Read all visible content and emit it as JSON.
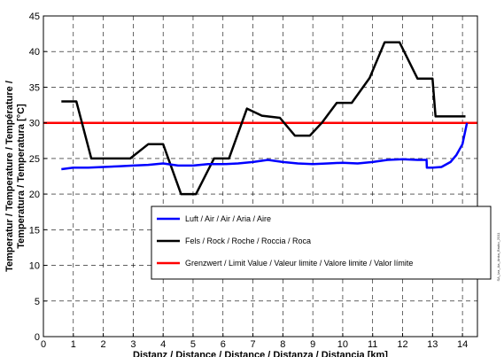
{
  "chart_data": {
    "type": "line",
    "title": "",
    "xlabel": "Distanz / Distance / Distance / Distanza / Distancia [km]",
    "ylabel_lines": [
      "Temperatur / Temperature / Température /",
      "Temperatura / Temperatura [°C]"
    ],
    "xlim": [
      0,
      14.5
    ],
    "ylim": [
      0,
      45
    ],
    "xticks": [
      0,
      1,
      2,
      3,
      4,
      5,
      6,
      7,
      8,
      9,
      10,
      11,
      12,
      13,
      14
    ],
    "yticks": [
      0,
      5,
      10,
      15,
      20,
      25,
      30,
      35,
      40,
      45
    ],
    "grid": "dashed",
    "legend_position": "lower-right",
    "side_note": "SA_Iza_Aa_Anka_Brutto_2011",
    "series": [
      {
        "name": "Luft / Air / Air / Aria / Aire",
        "color": "#0000ff",
        "x": [
          0.6,
          1.0,
          1.5,
          2.0,
          2.5,
          3.0,
          3.5,
          4.0,
          4.5,
          5.0,
          5.5,
          6.0,
          6.5,
          7.0,
          7.5,
          8.0,
          8.5,
          9.0,
          9.5,
          10.0,
          10.5,
          11.0,
          11.5,
          12.0,
          12.5,
          12.8,
          12.81,
          13.0,
          13.3,
          13.6,
          13.8,
          14.0,
          14.15
        ],
        "y": [
          23.5,
          23.7,
          23.7,
          23.8,
          23.9,
          24.0,
          24.1,
          24.3,
          24.0,
          24.0,
          24.2,
          24.2,
          24.3,
          24.5,
          24.8,
          24.5,
          24.3,
          24.2,
          24.3,
          24.4,
          24.3,
          24.5,
          24.8,
          24.9,
          24.8,
          24.8,
          23.7,
          23.7,
          23.8,
          24.5,
          25.5,
          27.0,
          30.0
        ]
      },
      {
        "name": "Fels / Rock / Roche / Roccia / Roca",
        "color": "#000000",
        "x": [
          0.6,
          1.1,
          1.6,
          2.9,
          3.5,
          4.0,
          4.6,
          5.1,
          5.7,
          6.2,
          6.8,
          7.3,
          7.9,
          8.4,
          8.9,
          9.3,
          9.8,
          10.3,
          10.9,
          11.4,
          11.9,
          12.5,
          13.0,
          13.1,
          13.5,
          14.1
        ],
        "y": [
          33.0,
          33.0,
          25.0,
          25.0,
          27.0,
          27.0,
          20.0,
          20.0,
          25.0,
          25.0,
          32.0,
          31.0,
          30.7,
          28.2,
          28.2,
          30.0,
          32.8,
          32.8,
          36.3,
          41.3,
          41.3,
          36.2,
          36.2,
          30.9,
          30.9,
          30.9
        ]
      },
      {
        "name": "Grenzwert / Limit Value / Valeur limite / Valore limite / Valor límite",
        "color": "#ff0000",
        "x": [
          0,
          14.5
        ],
        "y": [
          30,
          30
        ]
      }
    ]
  }
}
